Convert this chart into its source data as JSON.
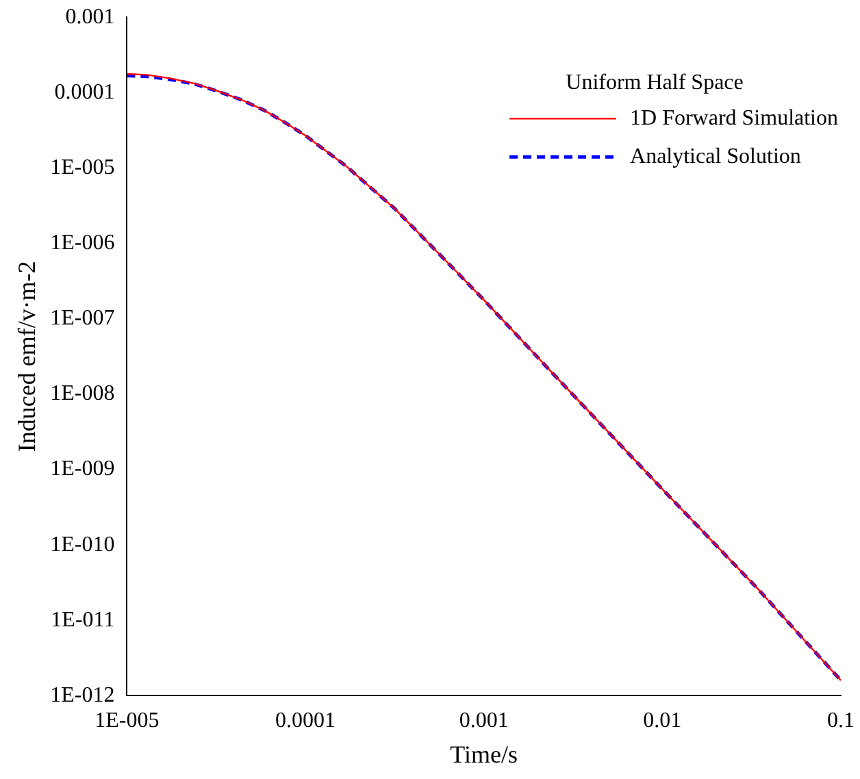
{
  "chart_data": {
    "type": "line",
    "xlabel": "Time/s",
    "ylabel": "Induced emf/v·m-2",
    "legend_title": "Uniform Half Space",
    "legend": "top right",
    "log": "xy",
    "grid": false,
    "marker": "none",
    "x": [
      1e-05,
      1.3e-05,
      1.74e-05,
      2.4e-05,
      3.2e-05,
      4.4e-05,
      5.9e-05,
      7.7e-05,
      0.0001,
      0.00017,
      0.000316,
      0.00058,
      0.001,
      0.00245,
      0.01,
      0.0349,
      0.1
    ],
    "series": [
      {
        "name": "1D Forward Simulation",
        "color": "#ff0000",
        "line_style": "solid",
        "values": [
          0.000177,
          0.000172,
          0.000155,
          0.000132,
          0.000106,
          8e-05,
          5.8e-05,
          4e-05,
          2.7e-05,
          1.05e-05,
          2.9e-06,
          6.7e-07,
          1.78e-07,
          1.85e-08,
          5.5e-10,
          2.5e-11,
          1.6e-12
        ]
      },
      {
        "name": "Analytical Solution",
        "color": "#0000ff",
        "line_style": "dashed",
        "values": [
          0.000168,
          0.000164,
          0.00015,
          0.00013,
          0.000105,
          8e-05,
          5.8e-05,
          4e-05,
          2.7e-05,
          1.05e-05,
          2.9e-06,
          6.7e-07,
          1.78e-07,
          1.85e-08,
          5.5e-10,
          2.5e-11,
          1.6e-12
        ]
      }
    ],
    "xlim": [
      1e-05,
      0.1
    ],
    "xticks": [
      {
        "value": 1e-05,
        "label": "1E-005"
      },
      0.0001,
      0.001,
      0.01,
      0.1
    ],
    "ylim": [
      1e-12,
      0.001
    ],
    "yticks": [
      {
        "value": 1e-12,
        "label": "1E-012"
      },
      {
        "value": 1e-11,
        "label": "1E-011"
      },
      {
        "value": 1e-10,
        "label": "1E-010"
      },
      {
        "value": 1e-09,
        "label": "1E-009"
      },
      {
        "value": 1e-08,
        "label": "1E-008"
      },
      {
        "value": 1e-07,
        "label": "1E-007"
      },
      {
        "value": 1e-06,
        "label": "1E-006"
      },
      {
        "value": 1e-05,
        "label": "1E-005"
      },
      0.0001,
      0.001
    ]
  }
}
